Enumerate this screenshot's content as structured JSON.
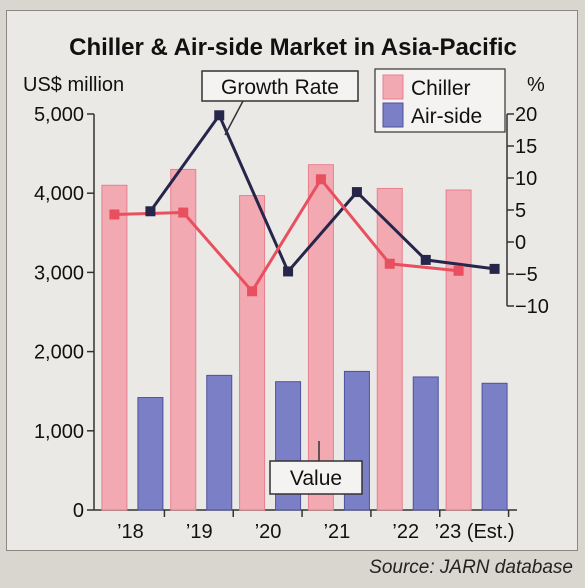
{
  "colors": {
    "chiller_bar": "#f2a9b2",
    "chiller_bar_edge": "#e8808d",
    "airside_bar": "#7b7fc6",
    "airside_bar_edge": "#4e529c",
    "chiller_growth_line": "#e8505f",
    "airside_growth_line": "#26264a",
    "background": "#ebe9e6"
  },
  "chart_data": {
    "type": "bar",
    "title": "Chiller & Air-side Market in Asia-Pacific",
    "ylabel": "US$ million",
    "y2label": "%",
    "categories": [
      "’18",
      "’19",
      "’20",
      "’21",
      "’22",
      "’23 (Est.)"
    ],
    "ylim": [
      0,
      5000
    ],
    "y_ticks": [
      "0",
      "1,000",
      "2,000",
      "3,000",
      "4,000",
      "5,000"
    ],
    "y2lim": [
      -10,
      20
    ],
    "y2_ticks": [
      "20",
      "15",
      "10",
      "5",
      "0",
      "-5",
      "-10"
    ],
    "series": [
      {
        "name": "Chiller",
        "kind": "bar",
        "values": [
          4100,
          4300,
          3970,
          4360,
          4060,
          4040
        ]
      },
      {
        "name": "Air-side",
        "kind": "bar",
        "values": [
          1420,
          1700,
          1620,
          1750,
          1680,
          1600
        ]
      }
    ],
    "growth_series": [
      {
        "series": "Chiller",
        "kind": "line",
        "axis": "right",
        "values": [
          4.3,
          4.6,
          -7.7,
          9.8,
          -3.4,
          -4.5
        ]
      },
      {
        "series": "Air-side",
        "kind": "line",
        "axis": "right",
        "values": [
          4.8,
          19.8,
          -4.6,
          7.8,
          -2.8,
          -4.2
        ]
      }
    ],
    "legend": {
      "position": "top-right",
      "entries": [
        "Chiller",
        "Air-side"
      ]
    },
    "annotations": [
      "Growth Rate",
      "Value"
    ],
    "grid": false
  },
  "source": "Source: JARN database"
}
